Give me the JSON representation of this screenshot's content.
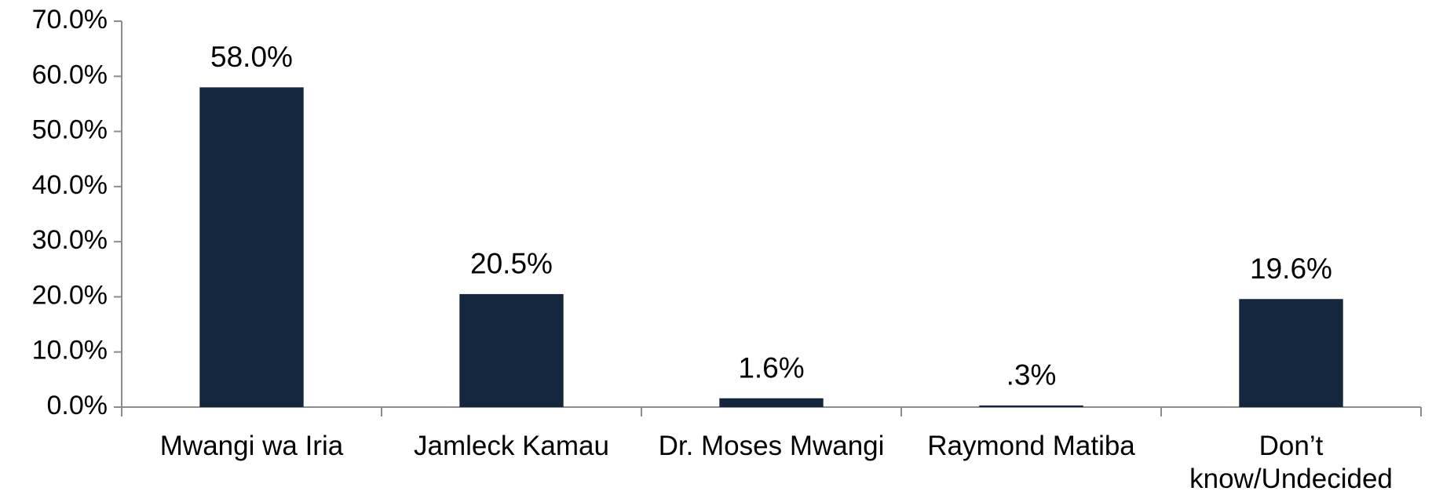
{
  "chart_data": {
    "type": "bar",
    "categories": [
      "Mwangi wa Iria",
      "Jamleck Kamau",
      "Dr. Moses Mwangi",
      "Raymond Matiba",
      "Don’t know/Undecided"
    ],
    "values": [
      58.0,
      20.5,
      1.6,
      0.3,
      19.6
    ],
    "value_labels": [
      "58.0%",
      "20.5%",
      "1.6%",
      ".3%",
      "19.6%"
    ],
    "color": "#14273f",
    "ylim": [
      0,
      70
    ],
    "yticks": [
      {
        "value": 0,
        "label": "0.0%"
      },
      {
        "value": 10,
        "label": "10.0%"
      },
      {
        "value": 20,
        "label": "20.0%"
      },
      {
        "value": 30,
        "label": "30.0%"
      },
      {
        "value": 40,
        "label": "40.0%"
      },
      {
        "value": 50,
        "label": "50.0%"
      },
      {
        "value": 60,
        "label": "60.0%"
      },
      {
        "value": 70,
        "label": "70.0%"
      }
    ],
    "grid": false
  }
}
